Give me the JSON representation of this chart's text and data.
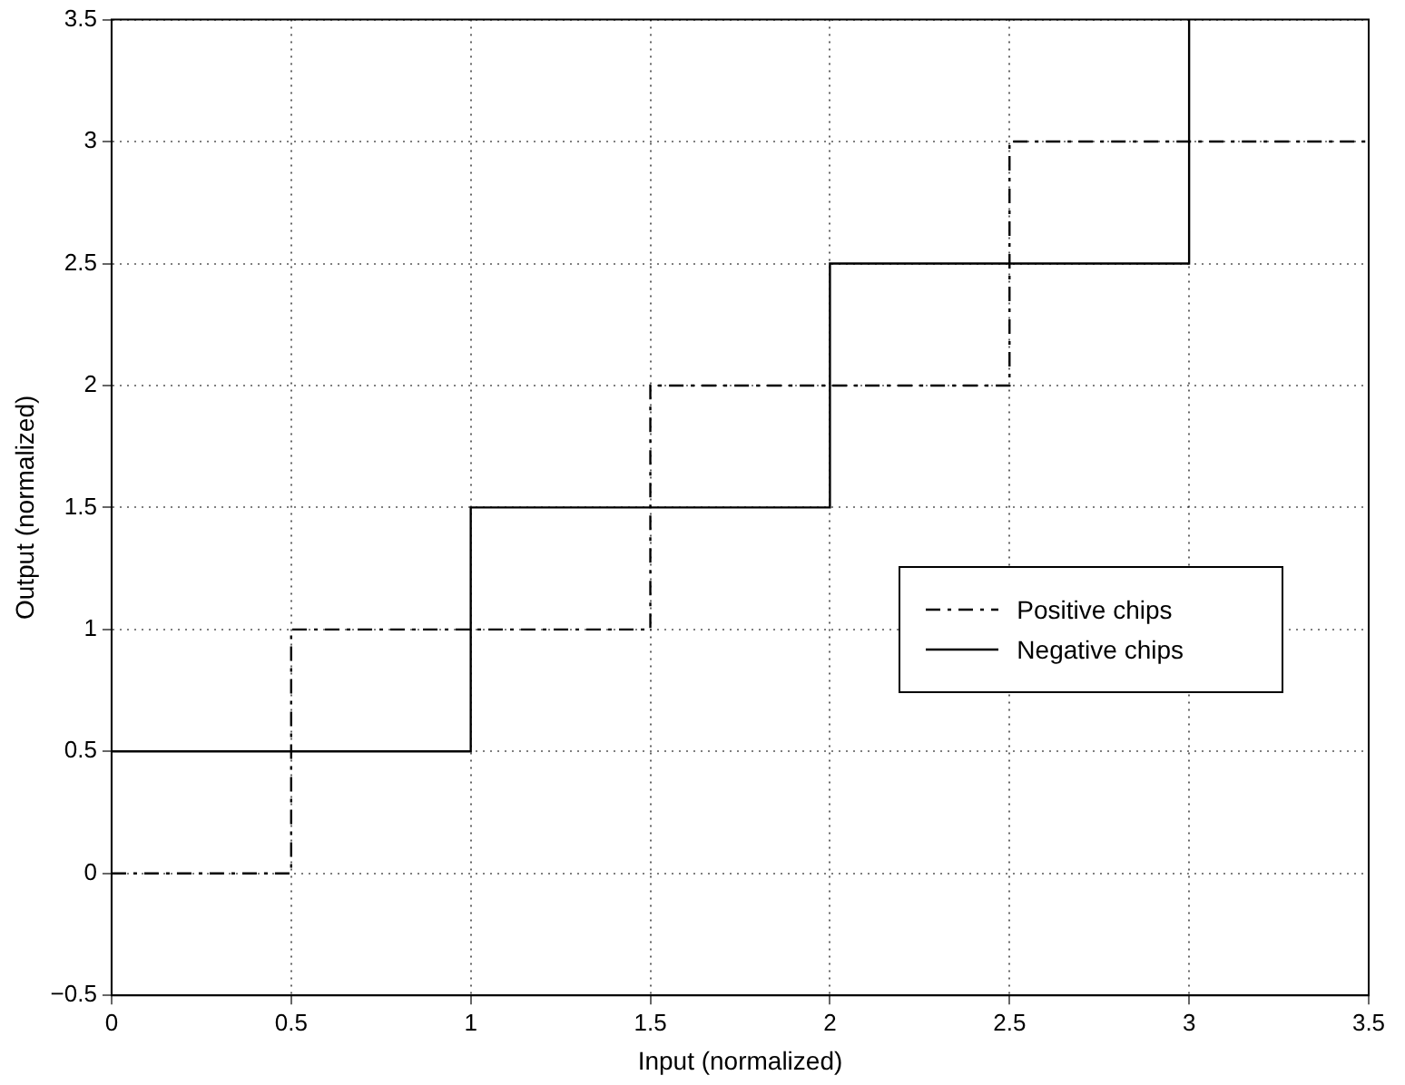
{
  "chart_data": {
    "type": "step",
    "xlabel": "Input (normalized)",
    "ylabel": "Output (normalized)",
    "xlim": [
      0,
      3.5
    ],
    "xticks": [
      0,
      0.5,
      1,
      1.5,
      2,
      2.5,
      3,
      3.5
    ],
    "ylim": [
      -0.5,
      3.5
    ],
    "yticks": [
      {
        "value": -0.5,
        "label": "−0.5"
      },
      0,
      0.5,
      1,
      1.5,
      2,
      2.5,
      3,
      3.5
    ],
    "grid": true,
    "legend": "right",
    "series": [
      {
        "name": "Positive chips",
        "color": "#000000",
        "line_style": "dashed",
        "x": [
          0,
          0.5,
          1.5,
          2.5,
          3.5
        ],
        "values": [
          0,
          1,
          2,
          3,
          3
        ]
      },
      {
        "name": "Negative chips",
        "color": "#000000",
        "line_style": "solid",
        "x": [
          0,
          1,
          2,
          3
        ],
        "values": [
          0.5,
          1.5,
          2.5,
          3.5
        ]
      }
    ]
  }
}
